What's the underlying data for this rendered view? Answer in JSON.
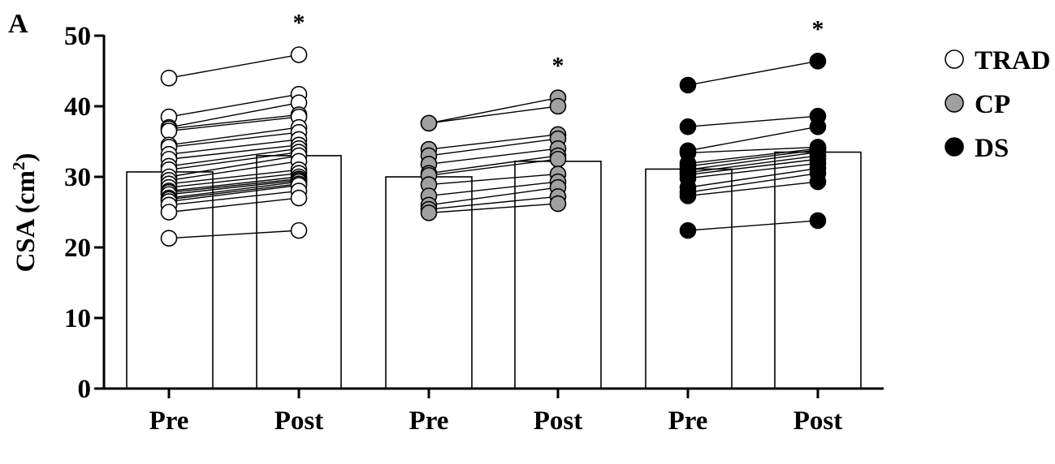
{
  "chart_data": {
    "type": "bar",
    "panel_label": "A",
    "ylabel": "CSA (cm²)",
    "ylabel_main": "CSA (cm",
    "ylabel_sup": "2",
    "ylabel_end": ")",
    "xlabel": "",
    "ylim": [
      0,
      50
    ],
    "yticks": [
      0,
      10,
      20,
      30,
      40,
      50
    ],
    "categories": [
      "Pre",
      "Post",
      "Pre",
      "Post",
      "Pre",
      "Post"
    ],
    "legend_position": "right",
    "groups": [
      {
        "name": "TRAD",
        "color": "#ffffff",
        "means": [
          30.7,
          33.0
        ],
        "significance": [
          false,
          true
        ],
        "significance_symbol": "*",
        "pairs": [
          [
            44.0,
            47.3
          ],
          [
            38.5,
            41.7
          ],
          [
            37.0,
            40.5
          ],
          [
            36.8,
            38.8
          ],
          [
            36.5,
            38.5
          ],
          [
            34.5,
            37.0
          ],
          [
            34.2,
            36.3
          ],
          [
            33.2,
            35.3
          ],
          [
            32.5,
            34.5
          ],
          [
            31.5,
            34.0
          ],
          [
            31.0,
            33.5
          ],
          [
            30.0,
            33.0
          ],
          [
            29.5,
            32.2
          ],
          [
            29.0,
            31.0
          ],
          [
            28.5,
            30.5
          ],
          [
            28.0,
            30.0
          ],
          [
            27.8,
            29.7
          ],
          [
            27.5,
            29.5
          ],
          [
            27.0,
            29.3
          ],
          [
            26.8,
            29.0
          ],
          [
            26.5,
            28.8
          ],
          [
            26.0,
            28.0
          ],
          [
            25.0,
            27.0
          ],
          [
            21.3,
            22.4
          ]
        ]
      },
      {
        "name": "CP",
        "color": "#a0a0a0",
        "means": [
          30.0,
          32.2
        ],
        "significance": [
          false,
          true
        ],
        "significance_symbol": "*",
        "pairs": [
          [
            37.6,
            41.2
          ],
          [
            37.6,
            40.0
          ],
          [
            33.9,
            36.0
          ],
          [
            33.0,
            35.4
          ],
          [
            31.8,
            34.0
          ],
          [
            30.5,
            33.0
          ],
          [
            30.2,
            32.5
          ],
          [
            28.9,
            30.4
          ],
          [
            27.3,
            29.3
          ],
          [
            26.0,
            28.5
          ],
          [
            25.4,
            27.2
          ],
          [
            24.9,
            26.2
          ]
        ]
      },
      {
        "name": "DS",
        "color": "#000000",
        "means": [
          31.1,
          33.5
        ],
        "significance": [
          false,
          true
        ],
        "significance_symbol": "*",
        "pairs": [
          [
            43.0,
            46.4
          ],
          [
            37.1,
            38.6
          ],
          [
            33.7,
            37.1
          ],
          [
            33.4,
            34.2
          ],
          [
            31.9,
            34.0
          ],
          [
            31.5,
            33.8
          ],
          [
            31.0,
            33.5
          ],
          [
            30.6,
            33.0
          ],
          [
            30.3,
            32.5
          ],
          [
            29.8,
            31.9
          ],
          [
            28.5,
            31.2
          ],
          [
            27.8,
            30.5
          ],
          [
            27.3,
            29.3
          ],
          [
            22.4,
            23.8
          ]
        ]
      }
    ]
  }
}
